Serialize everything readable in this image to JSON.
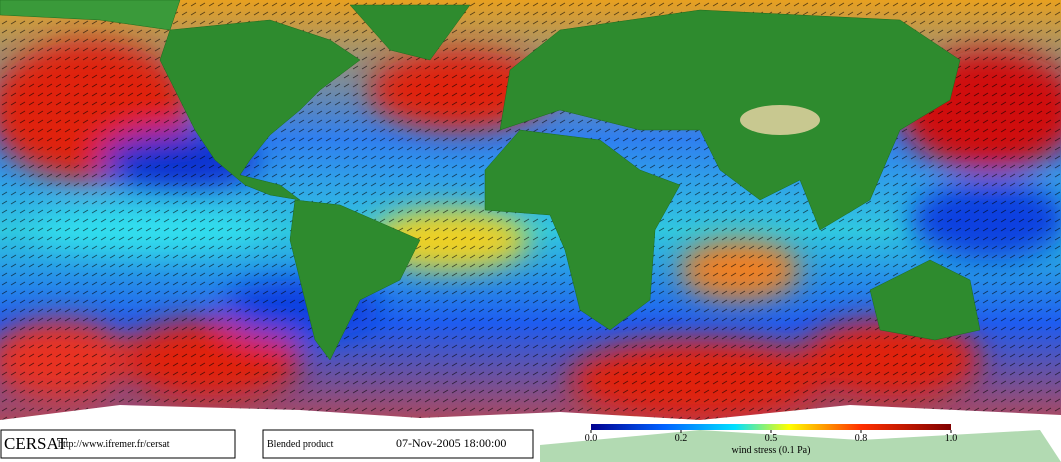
{
  "header": {
    "logo": "CERSAT",
    "url": "http://www.ifremer.fr/cersat"
  },
  "product": {
    "name": "Blended product",
    "date": "07-Nov-2005 18:00:00"
  },
  "colorbar": {
    "label": "wind stress (0.1 Pa)",
    "ticks": [
      {
        "value": 0,
        "label": "0.0"
      },
      0.2,
      0.5,
      0.8,
      {
        "value": 1,
        "label": "1.0"
      }
    ]
  }
}
